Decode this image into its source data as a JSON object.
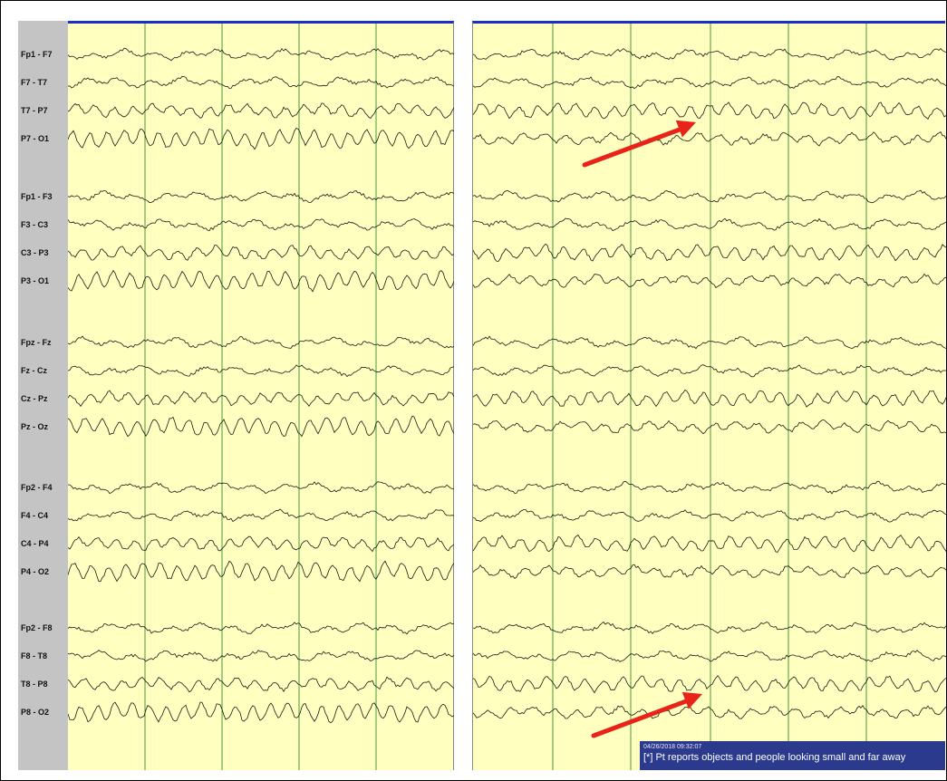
{
  "montage": {
    "channels": [
      "Fp1 - F7",
      "F7 - T7",
      "T7 - P7",
      "P7 - O1",
      "Fp1 - F3",
      "F3 - C3",
      "C3 - P3",
      "P3 - O1",
      "Fpz - Fz",
      "Fz - Cz",
      "Cz - Pz",
      "Pz - Oz",
      "Fp2 - F4",
      "F4 - C4",
      "C4 - P4",
      "P4 - O2",
      "Fp2 - F8",
      "F8 - T8",
      "T8 - P8",
      "P8 - O2"
    ]
  },
  "colors": {
    "background": "#ffffc0",
    "trace": "#1a1a1a",
    "gridline": "#4a9a3a",
    "header_bar": "#1a2fc8",
    "arrow": "#e8231a",
    "annotation_bg": "#2b3a8c",
    "label_column": "#c4c4c4"
  },
  "annotation": {
    "timestamp": "04/26/2018 09:32:07",
    "text": "[*] Pt reports objects and people looking small and far away"
  },
  "markers": [
    {
      "name": "arrow-upper",
      "points_to": "T7 - P7"
    },
    {
      "name": "arrow-lower",
      "points_to": "T8 - P8"
    }
  ]
}
